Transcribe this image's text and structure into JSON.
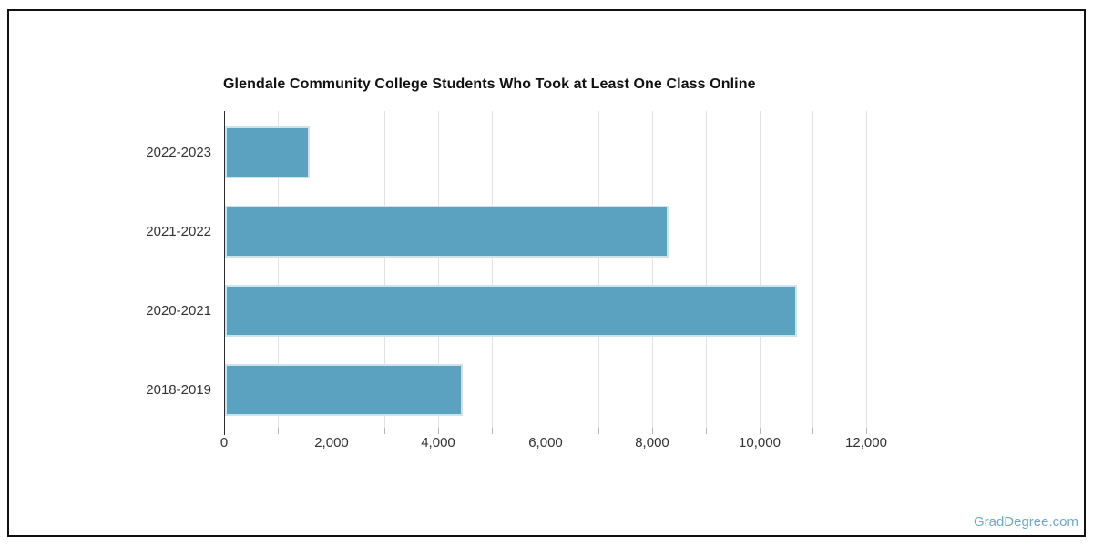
{
  "chart_data": {
    "type": "bar",
    "orientation": "horizontal",
    "title": "Glendale Community College Students Who Took at Least One Class Online",
    "categories": [
      "2022-2023",
      "2021-2022",
      "2020-2021",
      "2018-2019"
    ],
    "values": [
      1580,
      8280,
      10690,
      4440
    ],
    "xlabel": "",
    "ylabel": "",
    "xlim": [
      0,
      13000
    ],
    "x_major_ticks": [
      0,
      2000,
      4000,
      6000,
      8000,
      10000,
      12000
    ],
    "x_tick_labels": [
      "0",
      "2,000",
      "4,000",
      "6,000",
      "8,000",
      "10,000",
      "12,000"
    ],
    "gridline_interval": 1000,
    "grid": true,
    "legend": false,
    "colors": {
      "bar": "#5aa2c0",
      "bar_border": "#cfe3ec",
      "gridline": "#e2e2e2",
      "axis_line": "#2a2a2a",
      "tick": "#b5b5b5",
      "label": "#333333",
      "title": "#111111",
      "watermark": "#6fa8c7",
      "frame_border": "#111111"
    }
  },
  "watermark": {
    "text": "GradDegree.com"
  }
}
